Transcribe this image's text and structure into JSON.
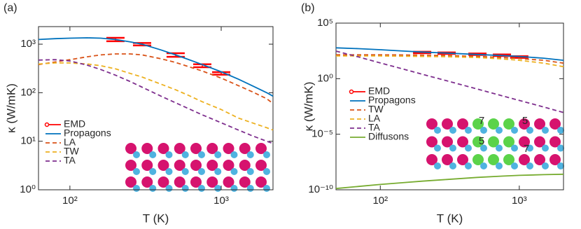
{
  "chart_data": [
    {
      "type": "line",
      "panel_label": "(a)",
      "xlabel": "T (K)",
      "ylabel": "κ (W/mK)",
      "xscale": "log",
      "yscale": "log",
      "xlim": [
        62,
        2200
      ],
      "ylim": [
        1,
        2300
      ],
      "xticks": [
        {
          "value": 100,
          "label": "10²"
        },
        {
          "value": 1000,
          "label": "10³"
        }
      ],
      "yticks": [
        {
          "value": 1,
          "label": "10⁰"
        },
        {
          "value": 10,
          "label": "10¹"
        },
        {
          "value": 100,
          "label": "10²"
        },
        {
          "value": 1000,
          "label": "10³"
        }
      ],
      "x": [
        62,
        80,
        100,
        130,
        160,
        200,
        250,
        300,
        400,
        500,
        600,
        750,
        1000,
        1300,
        1600,
        2000,
        2200
      ],
      "series": [
        {
          "name": "EMD",
          "color": "#ff0000",
          "style": "errorbar",
          "x": [
            200,
            300,
            500,
            750,
            1000
          ],
          "values": [
            1250,
            1000,
            600,
            360,
            250
          ],
          "errors": [
            100,
            60,
            50,
            25,
            15
          ]
        },
        {
          "name": "Propagons",
          "color": "#0072bd",
          "style": "solid",
          "values": [
            1250,
            1300,
            1330,
            1350,
            1330,
            1250,
            1120,
            1000,
            760,
            600,
            490,
            380,
            270,
            190,
            140,
            100,
            85
          ]
        },
        {
          "name": "LA",
          "color": "#d95319",
          "style": "dashed",
          "values": [
            380,
            430,
            480,
            550,
            600,
            630,
            630,
            600,
            500,
            420,
            350,
            280,
            200,
            140,
            105,
            75,
            60
          ]
        },
        {
          "name": "TW",
          "color": "#edb120",
          "style": "dashed",
          "values": [
            390,
            410,
            410,
            390,
            360,
            310,
            250,
            210,
            150,
            115,
            90,
            65,
            45,
            30,
            24,
            19,
            17
          ]
        },
        {
          "name": "TA",
          "color": "#7e2f8e",
          "style": "dashed",
          "values": [
            470,
            480,
            450,
            370,
            300,
            230,
            170,
            130,
            85,
            62,
            48,
            35,
            24,
            17,
            13,
            10,
            9
          ]
        }
      ]
    },
    {
      "type": "line",
      "panel_label": "(b)",
      "xlabel": "T (K)",
      "ylabel": "κ (W/mK)",
      "xscale": "log",
      "yscale": "log",
      "xlim": [
        48,
        2080
      ],
      "ylim": [
        1e-10,
        100000
      ],
      "xticks": [
        {
          "value": 100,
          "label": "10²"
        },
        {
          "value": 1000,
          "label": "10³"
        }
      ],
      "yticks": [
        {
          "value": 1e-10,
          "label": "10⁻¹⁰"
        },
        {
          "value": 1e-05,
          "label": "10⁻⁵"
        },
        {
          "value": 1,
          "label": "10⁰"
        },
        {
          "value": 100000,
          "label": "10⁵"
        }
      ],
      "annotations": [
        "7",
        "5",
        "5",
        "7"
      ],
      "x": [
        48,
        70,
        100,
        150,
        200,
        300,
        500,
        750,
        1000,
        1500,
        2080
      ],
      "series": [
        {
          "name": "EMD",
          "color": "#ff0000",
          "style": "errorbar",
          "x": [
            200,
            300,
            500,
            750,
            1000
          ],
          "values": [
            230,
            200,
            160,
            130,
            90
          ],
          "errors": [
            35,
            30,
            25,
            20,
            15
          ]
        },
        {
          "name": "Propagons",
          "color": "#0072bd",
          "style": "solid",
          "values": [
            600,
            500,
            400,
            300,
            250,
            200,
            150,
            120,
            100,
            70,
            45
          ]
        },
        {
          "name": "TW",
          "color": "#d95319",
          "style": "dashed",
          "values": [
            140,
            140,
            140,
            135,
            130,
            120,
            100,
            80,
            65,
            45,
            25
          ]
        },
        {
          "name": "LA",
          "color": "#edb120",
          "style": "dashed",
          "values": [
            110,
            110,
            110,
            105,
            100,
            95,
            80,
            60,
            45,
            25,
            12
          ]
        },
        {
          "name": "TA",
          "color": "#7e2f8e",
          "style": "dashed",
          "values": [
            300,
            89,
            26,
            6.7,
            2.5,
            0.65,
            0.115,
            0.029,
            0.011,
            0.0028,
            0.0009
          ]
        },
        {
          "name": "Diffusons",
          "color": "#77ac30",
          "style": "solid",
          "values": [
            1.3e-10,
            2e-10,
            3e-10,
            4.5e-10,
            6e-10,
            8.5e-10,
            1.3e-09,
            1.7e-09,
            2e-09,
            2.3e-09,
            2.5e-09
          ]
        }
      ]
    }
  ]
}
